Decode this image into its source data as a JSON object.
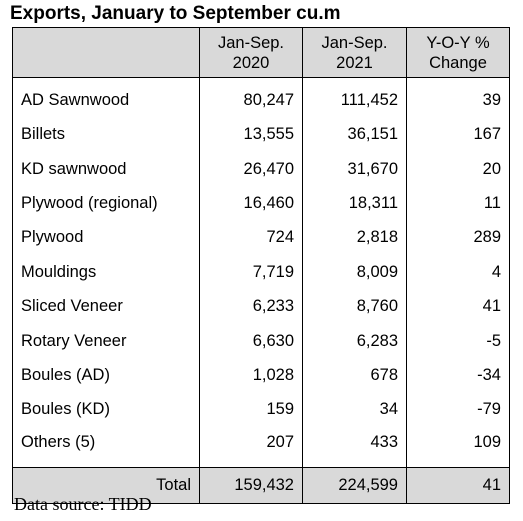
{
  "title": "Exports, January to September cu.m",
  "columns": {
    "col1": [
      "Jan-Sep.",
      "2020"
    ],
    "col2": [
      "Jan-Sep.",
      "2021"
    ],
    "col3": [
      "Y-O-Y %",
      "Change"
    ]
  },
  "rows": [
    {
      "name": "AD Sawnwood",
      "v2020": "80,247",
      "v2021": "111,452",
      "yoy": "39"
    },
    {
      "name": "Billets",
      "v2020": "13,555",
      "v2021": "36,151",
      "yoy": "167"
    },
    {
      "name": "KD sawnwood",
      "v2020": "26,470",
      "v2021": "31,670",
      "yoy": "20"
    },
    {
      "name": "Plywood (regional)",
      "v2020": "16,460",
      "v2021": "18,311",
      "yoy": "11"
    },
    {
      "name": "Plywood",
      "v2020": "724",
      "v2021": "2,818",
      "yoy": "289"
    },
    {
      "name": "Mouldings",
      "v2020": "7,719",
      "v2021": "8,009",
      "yoy": "4"
    },
    {
      "name": "Sliced Veneer",
      "v2020": "6,233",
      "v2021": "8,760",
      "yoy": "41"
    },
    {
      "name": "Rotary Veneer",
      "v2020": "6,630",
      "v2021": "6,283",
      "yoy": "-5"
    },
    {
      "name": "Boules (AD)",
      "v2020": "1,028",
      "v2021": "678",
      "yoy": "-34"
    },
    {
      "name": "Boules (KD)",
      "v2020": "159",
      "v2021": "34",
      "yoy": "-79"
    },
    {
      "name": "Others (5)",
      "v2020": "207",
      "v2021": "433",
      "yoy": "109"
    }
  ],
  "total": {
    "label": "Total",
    "v2020": "159,432",
    "v2021": "224,599",
    "yoy": "41"
  },
  "source": "Data source: TIDD"
}
